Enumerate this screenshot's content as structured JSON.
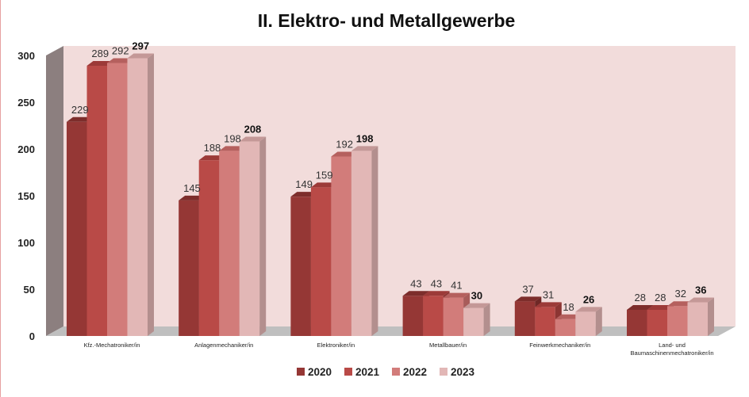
{
  "chart_data": {
    "type": "bar",
    "title": "II. Elektro- und Metallgewerbe",
    "categories": [
      [
        "Kfz.-Mechatroniker/in"
      ],
      [
        "Anlagenmechaniker/in"
      ],
      [
        "Elektroniker/in"
      ],
      [
        "Metallbauer/in"
      ],
      [
        "Feinwerkmechaniker/in"
      ],
      [
        "Land- und",
        "Baumaschinenmechatroniker/in"
      ]
    ],
    "series": [
      {
        "name": "2020",
        "color": "#953735",
        "side_color": "#6e2826",
        "top_color": "#7d2d2b",
        "values": [
          229,
          145,
          149,
          43,
          37,
          28
        ]
      },
      {
        "name": "2021",
        "color": "#b94a47",
        "side_color": "#8c3533",
        "top_color": "#9c3a38",
        "values": [
          289,
          188,
          159,
          43,
          31,
          28
        ]
      },
      {
        "name": "2022",
        "color": "#d27c7a",
        "side_color": "#a85c5a",
        "top_color": "#b5605e",
        "values": [
          292,
          198,
          192,
          41,
          18,
          32
        ]
      },
      {
        "name": "2023",
        "color": "#e2b7b6",
        "side_color": "#b38f8e",
        "top_color": "#c49897",
        "values": [
          297,
          208,
          198,
          30,
          26,
          36
        ]
      }
    ],
    "emphasized_series": "2023",
    "ylim": [
      0,
      300
    ],
    "yticks": [
      0,
      50,
      100,
      150,
      200,
      250,
      300
    ],
    "grid": false,
    "legend_position": "bottom",
    "back_wall_color": "#f2dcdb",
    "side_wall_color": "#8c7f7f",
    "floor_color": "#bfbfbf"
  }
}
